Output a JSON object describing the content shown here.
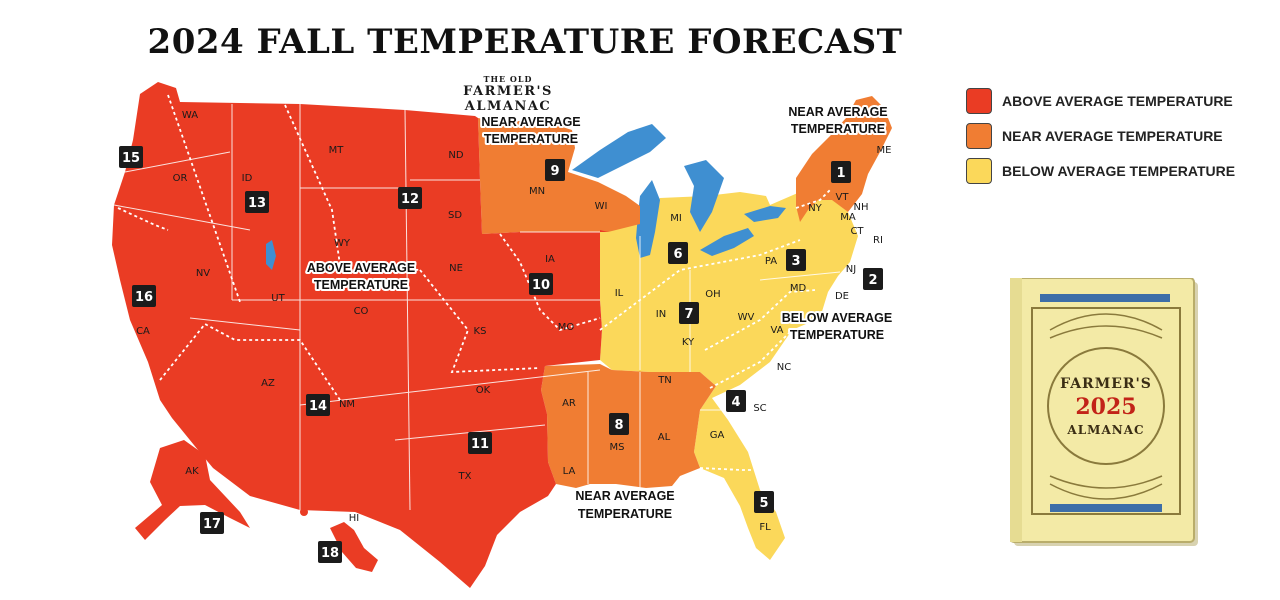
{
  "title": "2024 FALL TEMPERATURE FORECAST",
  "brand": {
    "line1": "THE OLD",
    "line2": "FARMER'S ALMANAC"
  },
  "colors": {
    "above": "#ea3c24",
    "near": "#f07d33",
    "below": "#fbd85a",
    "water": "#3f8fd1"
  },
  "legend": [
    {
      "label": "ABOVE AVERAGE TEMPERATURE",
      "color": "#ea3c24"
    },
    {
      "label": "NEAR AVERAGE TEMPERATURE",
      "color": "#f07d33"
    },
    {
      "label": "BELOW AVERAGE TEMPERATURE",
      "color": "#fbd85a"
    }
  ],
  "callouts": {
    "near_ne": [
      "NEAR AVERAGE",
      "TEMPERATURE"
    ],
    "near_mw": [
      "NEAR AVERAGE",
      "TEMPERATURE"
    ],
    "above": [
      "ABOVE AVERAGE",
      "TEMPERATURE"
    ],
    "below": [
      "BELOW AVERAGE",
      "TEMPERATURE"
    ],
    "near_s": [
      "NEAR AVERAGE",
      "TEMPERATURE"
    ]
  },
  "regions": [
    "1",
    "2",
    "3",
    "4",
    "5",
    "6",
    "7",
    "8",
    "9",
    "10",
    "11",
    "12",
    "13",
    "14",
    "15",
    "16",
    "17",
    "18"
  ],
  "states": [
    "WA",
    "OR",
    "CA",
    "ID",
    "NV",
    "MT",
    "WY",
    "UT",
    "AZ",
    "CO",
    "NM",
    "ND",
    "SD",
    "NE",
    "KS",
    "OK",
    "TX",
    "MN",
    "IA",
    "MO",
    "AR",
    "LA",
    "WI",
    "IL",
    "MI",
    "IN",
    "OH",
    "KY",
    "TN",
    "MS",
    "AL",
    "GA",
    "FL",
    "SC",
    "NC",
    "VA",
    "WV",
    "PA",
    "NY",
    "MD",
    "DE",
    "NJ",
    "CT",
    "RI",
    "MA",
    "VT",
    "NH",
    "ME",
    "AK",
    "HI"
  ],
  "book": {
    "title_top": "FARMER'S",
    "year": "2025",
    "title_bottom": "ALMANAC"
  }
}
